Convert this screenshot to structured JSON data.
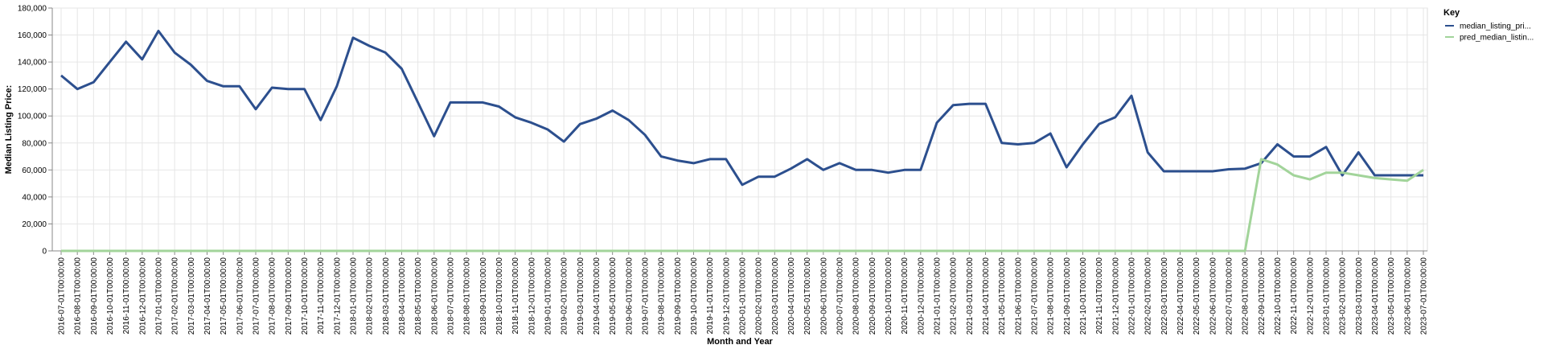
{
  "chart_data": {
    "type": "line",
    "xlabel": "Month and Year",
    "ylabel": "Median Listing Price:",
    "ylim": [
      0,
      180000
    ],
    "yticks": [
      0,
      20000,
      40000,
      60000,
      80000,
      100000,
      120000,
      140000,
      160000,
      180000
    ],
    "ytick_labels": [
      "0",
      "20,000",
      "40,000",
      "60,000",
      "80,000",
      "100,000",
      "120,000",
      "140,000",
      "160,000",
      "180,000"
    ],
    "grid": true,
    "legend": {
      "title": "Key",
      "placement": "top-right"
    },
    "x": [
      "2016-07-01T00:00:00",
      "2016-08-01T00:00:00",
      "2016-09-01T00:00:00",
      "2016-10-01T00:00:00",
      "2016-11-01T00:00:00",
      "2016-12-01T00:00:00",
      "2017-01-01T00:00:00",
      "2017-02-01T00:00:00",
      "2017-03-01T00:00:00",
      "2017-04-01T00:00:00",
      "2017-05-01T00:00:00",
      "2017-06-01T00:00:00",
      "2017-07-01T00:00:00",
      "2017-08-01T00:00:00",
      "2017-09-01T00:00:00",
      "2017-10-01T00:00:00",
      "2017-11-01T00:00:00",
      "2017-12-01T00:00:00",
      "2018-01-01T00:00:00",
      "2018-02-01T00:00:00",
      "2018-03-01T00:00:00",
      "2018-04-01T00:00:00",
      "2018-05-01T00:00:00",
      "2018-06-01T00:00:00",
      "2018-07-01T00:00:00",
      "2018-08-01T00:00:00",
      "2018-09-01T00:00:00",
      "2018-10-01T00:00:00",
      "2018-11-01T00:00:00",
      "2018-12-01T00:00:00",
      "2019-01-01T00:00:00",
      "2019-02-01T00:00:00",
      "2019-03-01T00:00:00",
      "2019-04-01T00:00:00",
      "2019-05-01T00:00:00",
      "2019-06-01T00:00:00",
      "2019-07-01T00:00:00",
      "2019-08-01T00:00:00",
      "2019-09-01T00:00:00",
      "2019-10-01T00:00:00",
      "2019-11-01T00:00:00",
      "2019-12-01T00:00:00",
      "2020-01-01T00:00:00",
      "2020-02-01T00:00:00",
      "2020-03-01T00:00:00",
      "2020-04-01T00:00:00",
      "2020-05-01T00:00:00",
      "2020-06-01T00:00:00",
      "2020-07-01T00:00:00",
      "2020-08-01T00:00:00",
      "2020-09-01T00:00:00",
      "2020-10-01T00:00:00",
      "2020-11-01T00:00:00",
      "2020-12-01T00:00:00",
      "2021-01-01T00:00:00",
      "2021-02-01T00:00:00",
      "2021-03-01T00:00:00",
      "2021-04-01T00:00:00",
      "2021-05-01T00:00:00",
      "2021-06-01T00:00:00",
      "2021-07-01T00:00:00",
      "2021-08-01T00:00:00",
      "2021-09-01T00:00:00",
      "2021-10-01T00:00:00",
      "2021-11-01T00:00:00",
      "2021-12-01T00:00:00",
      "2022-01-01T00:00:00",
      "2022-02-01T00:00:00",
      "2022-03-01T00:00:00",
      "2022-04-01T00:00:00",
      "2022-05-01T00:00:00",
      "2022-06-01T00:00:00",
      "2022-07-01T00:00:00",
      "2022-08-01T00:00:00",
      "2022-09-01T00:00:00",
      "2022-10-01T00:00:00",
      "2022-11-01T00:00:00",
      "2022-12-01T00:00:00",
      "2023-01-01T00:00:00",
      "2023-02-01T00:00:00",
      "2023-03-01T00:00:00",
      "2023-04-01T00:00:00",
      "2023-05-01T00:00:00",
      "2023-06-01T00:00:00",
      "2023-07-01T00:00:00"
    ],
    "series": [
      {
        "name": "median_listing_pri...",
        "color": "#2c4f8e",
        "values": [
          130000,
          120000,
          125000,
          140000,
          155000,
          142000,
          163000,
          147000,
          138000,
          126000,
          122000,
          122000,
          105000,
          121000,
          120000,
          120000,
          97000,
          122000,
          158000,
          152000,
          147000,
          135000,
          110000,
          85000,
          110000,
          110000,
          110000,
          107000,
          99000,
          95000,
          90000,
          81000,
          94000,
          98000,
          104000,
          97000,
          86000,
          70000,
          67000,
          65000,
          68000,
          68000,
          49000,
          55000,
          55000,
          61000,
          68000,
          60000,
          65000,
          60000,
          60000,
          58000,
          60000,
          60000,
          95000,
          108000,
          109000,
          109000,
          80000,
          79000,
          80000,
          87000,
          62000,
          79000,
          94000,
          99000,
          115000,
          73000,
          59000,
          59000,
          59000,
          59000,
          60500,
          61000,
          65000,
          79000,
          70000,
          70000,
          77000,
          56000,
          73000,
          56000,
          56000,
          56000,
          56000
        ]
      },
      {
        "name": "pred_median_listin...",
        "color": "#a2d49a",
        "values": [
          0,
          0,
          0,
          0,
          0,
          0,
          0,
          0,
          0,
          0,
          0,
          0,
          0,
          0,
          0,
          0,
          0,
          0,
          0,
          0,
          0,
          0,
          0,
          0,
          0,
          0,
          0,
          0,
          0,
          0,
          0,
          0,
          0,
          0,
          0,
          0,
          0,
          0,
          0,
          0,
          0,
          0,
          0,
          0,
          0,
          0,
          0,
          0,
          0,
          0,
          0,
          0,
          0,
          0,
          0,
          0,
          0,
          0,
          0,
          0,
          0,
          0,
          0,
          0,
          0,
          0,
          0,
          0,
          0,
          0,
          0,
          0,
          0,
          0,
          68000,
          64000,
          56000,
          53000,
          58000,
          58000,
          56000,
          54000,
          53000,
          52000,
          60000
        ]
      }
    ]
  }
}
